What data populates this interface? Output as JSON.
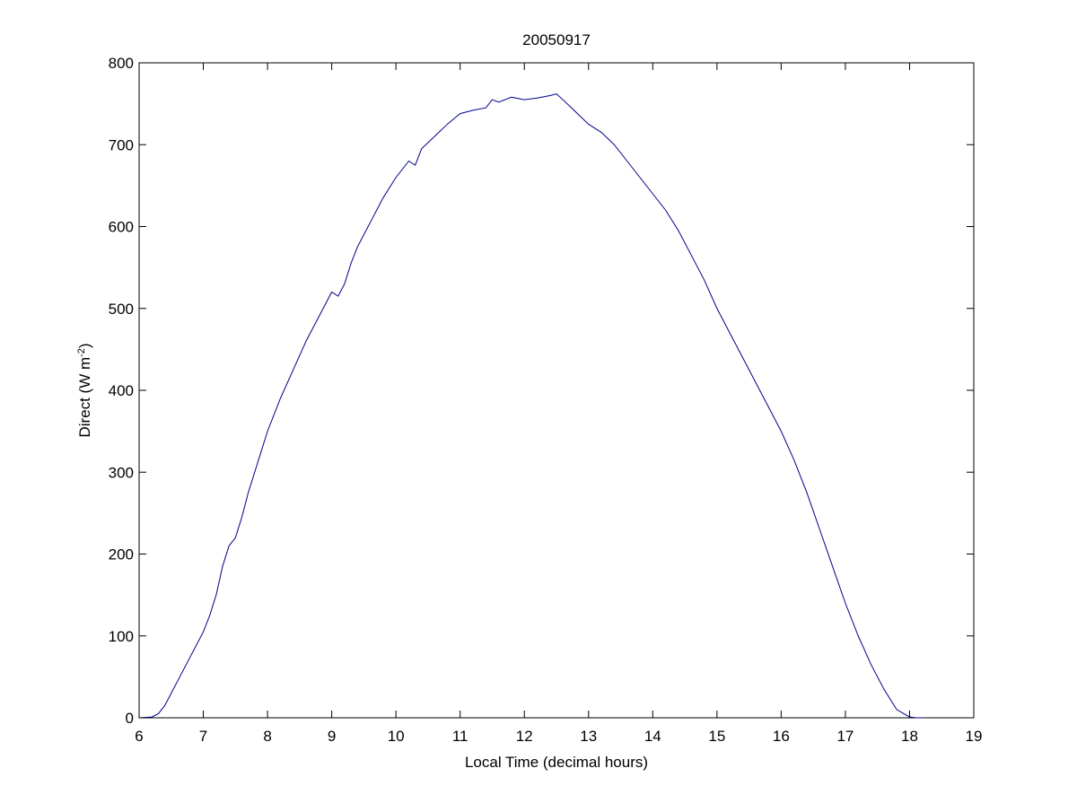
{
  "figure": {
    "background": "#ffffff"
  },
  "chart_data": {
    "type": "line",
    "title": "20050917",
    "xlabel": "Local Time (decimal hours)",
    "ylabel": {
      "main": "Direct (W m",
      "superscript": "-2",
      "tail": ")"
    },
    "xlim": [
      6,
      19
    ],
    "ylim": [
      0,
      800
    ],
    "xticks": [
      6,
      7,
      8,
      9,
      10,
      11,
      12,
      13,
      14,
      15,
      16,
      17,
      18,
      19
    ],
    "yticks": [
      0,
      100,
      200,
      300,
      400,
      500,
      600,
      700,
      800
    ],
    "grid": false,
    "line_color": "#00008b",
    "series": [
      {
        "x": [
          6.0,
          6.2,
          6.3,
          6.4,
          6.5,
          6.6,
          6.7,
          6.8,
          6.9,
          7.0,
          7.1,
          7.2,
          7.3,
          7.4,
          7.5,
          7.6,
          7.7,
          7.8,
          7.9,
          8.0,
          8.2,
          8.4,
          8.6,
          8.8,
          9.0,
          9.1,
          9.2,
          9.3,
          9.4,
          9.6,
          9.8,
          10.0,
          10.2,
          10.3,
          10.4,
          10.6,
          10.8,
          11.0,
          11.2,
          11.4,
          11.5,
          11.6,
          11.8,
          12.0,
          12.2,
          12.4,
          12.5,
          12.6,
          12.8,
          13.0,
          13.2,
          13.4,
          13.6,
          13.8,
          14.0,
          14.2,
          14.4,
          14.6,
          14.8,
          15.0,
          15.2,
          15.4,
          15.6,
          15.8,
          16.0,
          16.2,
          16.4,
          16.6,
          16.8,
          17.0,
          17.2,
          17.4,
          17.6,
          17.8,
          18.0,
          18.1,
          18.2
        ],
        "y": [
          0,
          1,
          5,
          15,
          30,
          45,
          60,
          75,
          90,
          105,
          125,
          150,
          185,
          210,
          220,
          245,
          275,
          300,
          325,
          350,
          390,
          425,
          460,
          490,
          520,
          515,
          530,
          555,
          575,
          605,
          635,
          660,
          680,
          675,
          695,
          710,
          725,
          738,
          742,
          745,
          755,
          752,
          758,
          755,
          757,
          760,
          762,
          755,
          740,
          725,
          715,
          700,
          680,
          660,
          640,
          620,
          595,
          565,
          535,
          500,
          470,
          440,
          410,
          380,
          350,
          315,
          275,
          230,
          185,
          140,
          100,
          65,
          35,
          10,
          1,
          0,
          0
        ]
      }
    ]
  }
}
